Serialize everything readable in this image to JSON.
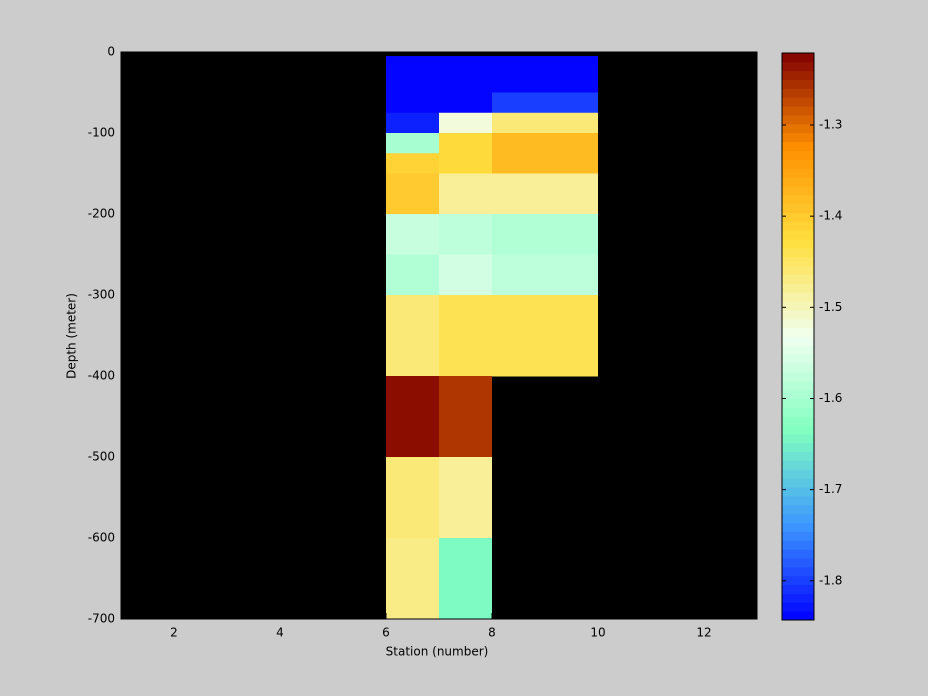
{
  "chart_data": {
    "type": "heatmap",
    "xlabel": "Station (number)",
    "ylabel": "Depth (meter)",
    "xlim": [
      1,
      13
    ],
    "xticks": [
      2,
      4,
      6,
      8,
      10,
      12
    ],
    "ylim": [
      -700,
      0
    ],
    "yticks": [
      0,
      -100,
      -200,
      -300,
      -400,
      -500,
      -600,
      -700
    ],
    "x_edges": [
      6,
      7,
      8,
      10
    ],
    "y_edges": [
      -5,
      -50,
      -75,
      -100,
      -125,
      -150,
      -200,
      -250,
      -300,
      -400,
      -500,
      -600,
      -700
    ],
    "values": [
      [
        -1.84,
        -1.84,
        -1.84
      ],
      [
        -1.84,
        -1.84,
        -1.8
      ],
      [
        -1.82,
        -1.52,
        -1.46
      ],
      [
        -1.6,
        -1.42,
        -1.38
      ],
      [
        -1.41,
        -1.42,
        -1.38
      ],
      [
        -1.4,
        -1.48,
        -1.48
      ],
      [
        -1.57,
        -1.58,
        -1.59
      ],
      [
        -1.59,
        -1.56,
        -1.58
      ],
      [
        -1.46,
        -1.44,
        -1.44
      ],
      [
        -1.23,
        -1.26,
        null
      ],
      [
        -1.46,
        -1.48,
        null
      ],
      [
        -1.47,
        -1.64,
        null
      ]
    ],
    "clim": [
      -1.843,
      -1.221
    ],
    "colorbar_ticks": [
      -1.3,
      -1.4,
      -1.5,
      -1.6,
      -1.7,
      -1.8
    ],
    "colormap": [
      "#0000ff",
      "#3c96ff",
      "#80ffc0",
      "#f0fff0",
      "#ffe040",
      "#ff9000",
      "#800000"
    ],
    "nan_color": "#000000"
  }
}
